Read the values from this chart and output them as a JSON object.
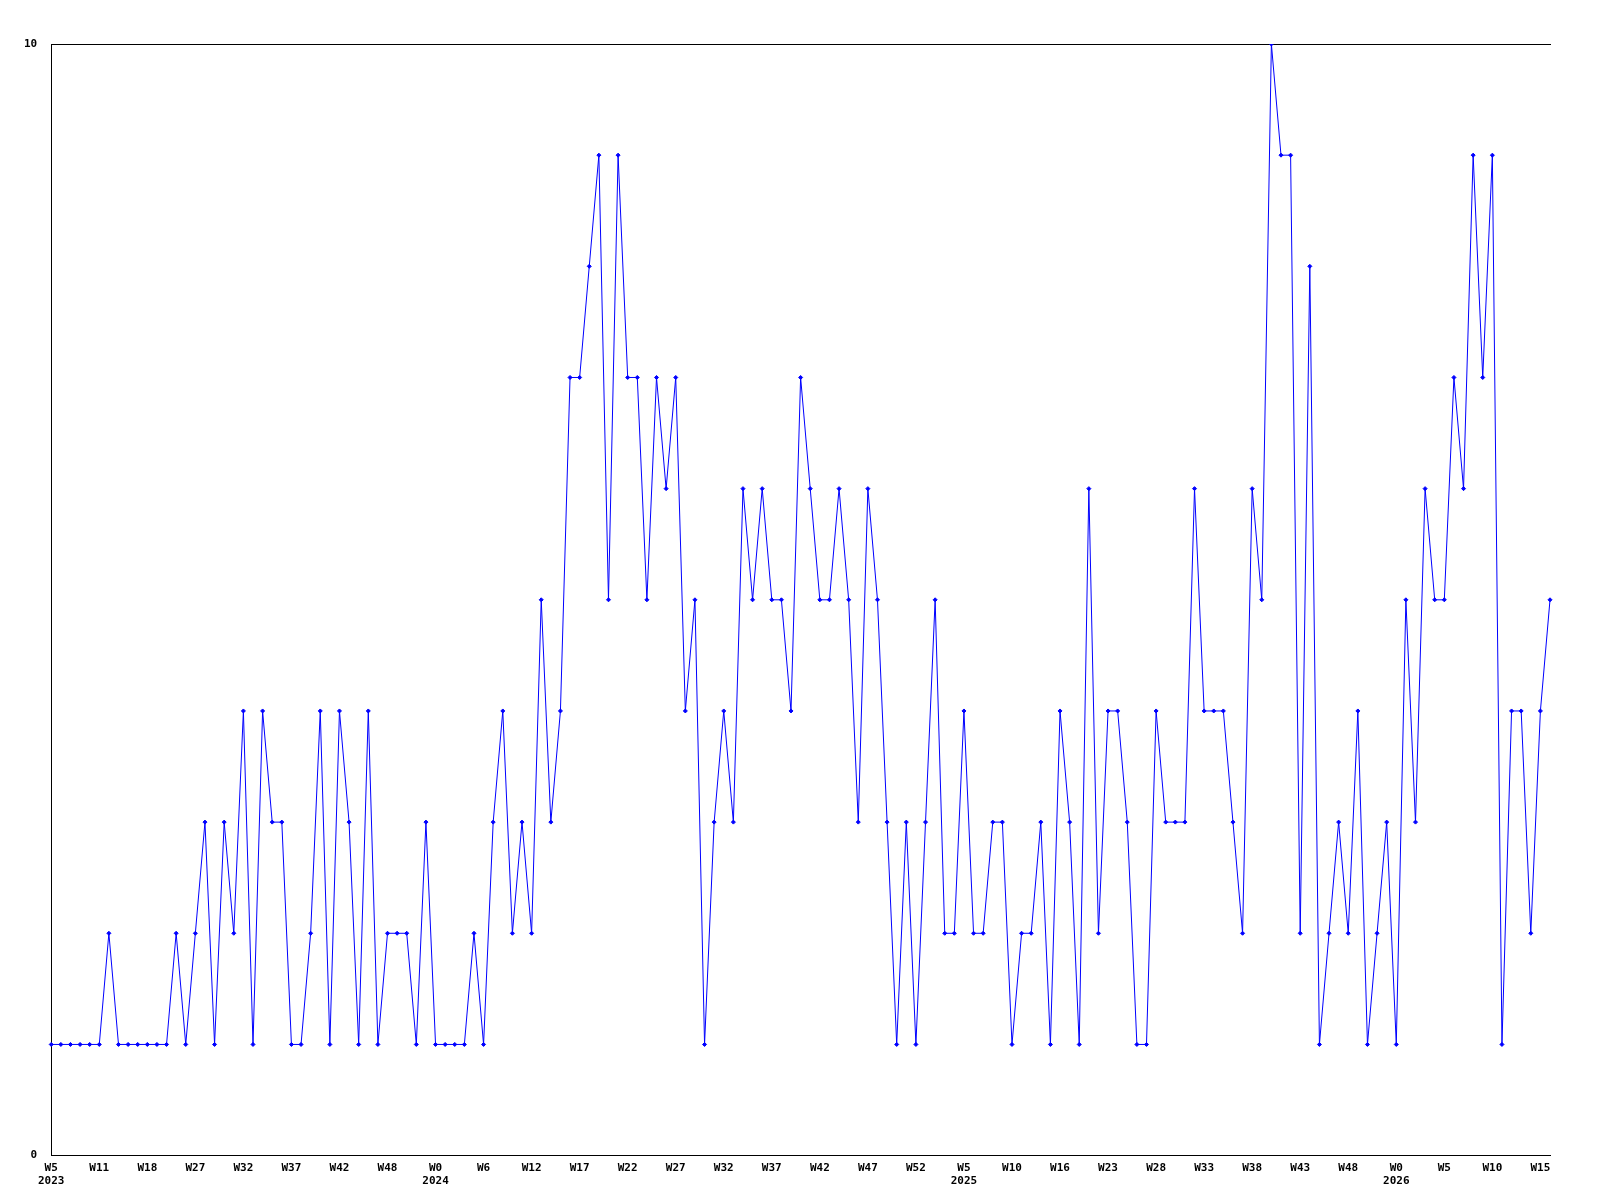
{
  "chart_data": {
    "type": "line",
    "categories": [
      "W5\n2023",
      null,
      null,
      null,
      null,
      "W11",
      null,
      null,
      null,
      null,
      "W18",
      null,
      null,
      null,
      null,
      "W27",
      null,
      null,
      null,
      null,
      "W32",
      null,
      null,
      null,
      null,
      "W37",
      null,
      null,
      null,
      null,
      "W42",
      null,
      null,
      null,
      null,
      "W48",
      null,
      null,
      null,
      null,
      "W0\n2024",
      null,
      null,
      null,
      null,
      "W6",
      null,
      null,
      null,
      null,
      "W12",
      null,
      null,
      null,
      null,
      "W17",
      null,
      null,
      null,
      null,
      "W22",
      null,
      null,
      null,
      null,
      "W27",
      null,
      null,
      null,
      null,
      "W32",
      null,
      null,
      null,
      null,
      "W37",
      null,
      null,
      null,
      null,
      "W42",
      null,
      null,
      null,
      null,
      "W47",
      null,
      null,
      null,
      null,
      "W52",
      null,
      null,
      null,
      null,
      "W5\n2025",
      null,
      null,
      null,
      null,
      "W10",
      null,
      null,
      null,
      null,
      "W16",
      null,
      null,
      null,
      null,
      "W23",
      null,
      null,
      null,
      null,
      "W28",
      null,
      null,
      null,
      null,
      "W33",
      null,
      null,
      null,
      null,
      "W38",
      null,
      null,
      null,
      null,
      "W43",
      null,
      null,
      null,
      null,
      "W48",
      null,
      null,
      null,
      null,
      "W0\n2026",
      null,
      null,
      null,
      null,
      "W5",
      null,
      null,
      null,
      null,
      "W10",
      null,
      null,
      null,
      null,
      "W15",
      null
    ],
    "series": [
      {
        "color": "#0000ff",
        "values": [
          1,
          1,
          1,
          1,
          1,
          1,
          2,
          1,
          1,
          1,
          1,
          1,
          1,
          2,
          1,
          2,
          3,
          1,
          3,
          2,
          4,
          1,
          4,
          3,
          3,
          1,
          1,
          2,
          4,
          1,
          4,
          3,
          1,
          4,
          1,
          2,
          2,
          2,
          1,
          3,
          1,
          1,
          1,
          1,
          2,
          1,
          3,
          4,
          2,
          3,
          2,
          5,
          3,
          4,
          7,
          7,
          8,
          9,
          5,
          9,
          7,
          7,
          5,
          7,
          6,
          7,
          4,
          5,
          1,
          3,
          4,
          3,
          6,
          5,
          6,
          5,
          5,
          4,
          7,
          6,
          5,
          5,
          6,
          5,
          3,
          6,
          5,
          3,
          1,
          3,
          1,
          3,
          5,
          2,
          2,
          4,
          2,
          2,
          3,
          3,
          1,
          2,
          2,
          3,
          1,
          4,
          3,
          1,
          6,
          2,
          4,
          4,
          3,
          1,
          1,
          4,
          3,
          3,
          3,
          6,
          4,
          4,
          4,
          3,
          2,
          6,
          5,
          10,
          9,
          9,
          2,
          8,
          1,
          2,
          3,
          2,
          4,
          1,
          2,
          3,
          1,
          5,
          3,
          6,
          5,
          5,
          7,
          6,
          9,
          7,
          9,
          1,
          4,
          4,
          2,
          4,
          5
        ]
      }
    ],
    "ylim": [
      0,
      10
    ],
    "yticks": [
      0,
      10
    ],
    "grid": false,
    "legend": false,
    "marker": "diamond",
    "line_style": "solid"
  }
}
